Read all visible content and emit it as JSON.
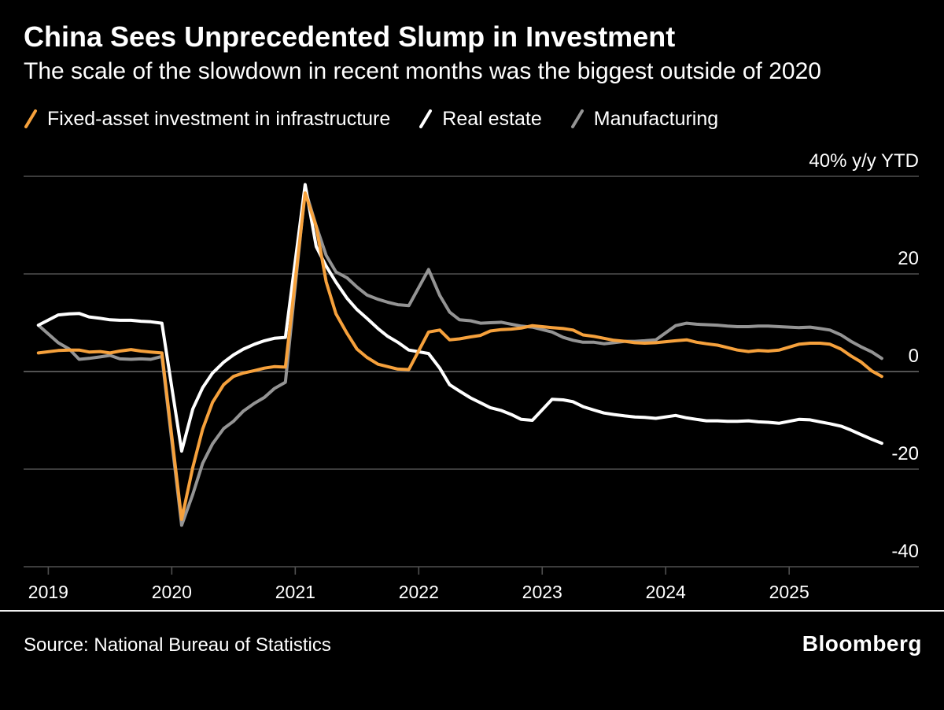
{
  "header": {
    "title": "China Sees Unprecedented Slump in Investment",
    "subtitle": "The scale of the slowdown in recent months was the biggest outside of 2020"
  },
  "footer": {
    "source": "Source: National Bureau of Statistics",
    "brand": "Bloomberg"
  },
  "colors": {
    "background": "#000000",
    "grid": "#505050",
    "zero_line": "#6e6e6e",
    "baseline": "#f0f0f0",
    "axis_text": "#ffffff"
  },
  "chart_data": {
    "type": "line",
    "title": "China Sees Unprecedented Slump in Investment",
    "subtitle": "The scale of the slowdown in recent months was the biggest outside of 2020",
    "unit_label": "40% y/y YTD",
    "ylim": [
      -45,
      45
    ],
    "yticks": [
      40,
      20,
      0,
      -20,
      -40
    ],
    "ytick_labels": [
      "40% y/y YTD",
      "20",
      "0",
      "-20",
      "-40"
    ],
    "xlim": [
      2018.8,
      2026.05
    ],
    "xticks": [
      2019,
      2020,
      2021,
      2022,
      2023,
      2024,
      2025
    ],
    "xtick_labels": [
      "2019",
      "2020",
      "2021",
      "2022",
      "2023",
      "2024",
      "2025"
    ],
    "grid": true,
    "legend_position": "top",
    "x": [
      2018.92,
      2019.08,
      2019.17,
      2019.25,
      2019.33,
      2019.42,
      2019.5,
      2019.58,
      2019.67,
      2019.75,
      2019.83,
      2019.92,
      2020.08,
      2020.17,
      2020.25,
      2020.33,
      2020.42,
      2020.5,
      2020.58,
      2020.67,
      2020.75,
      2020.83,
      2020.92,
      2021.08,
      2021.17,
      2021.25,
      2021.33,
      2021.42,
      2021.5,
      2021.58,
      2021.67,
      2021.75,
      2021.83,
      2021.92,
      2022.08,
      2022.17,
      2022.25,
      2022.33,
      2022.42,
      2022.5,
      2022.58,
      2022.67,
      2022.75,
      2022.83,
      2022.92,
      2023.08,
      2023.17,
      2023.25,
      2023.33,
      2023.42,
      2023.5,
      2023.58,
      2023.67,
      2023.75,
      2023.83,
      2023.92,
      2024.08,
      2024.17,
      2024.25,
      2024.33,
      2024.42,
      2024.5,
      2024.58,
      2024.67,
      2024.75,
      2024.83,
      2024.92,
      2025.08,
      2025.17,
      2025.25,
      2025.33,
      2025.42,
      2025.5,
      2025.58,
      2025.67,
      2025.75
    ],
    "series": [
      {
        "name": "Fixed-asset investment in infrastructure",
        "color": "#F6A13C",
        "values": [
          3.8,
          4.3,
          4.4,
          4.4,
          4.0,
          4.1,
          3.8,
          4.2,
          4.5,
          4.2,
          4.0,
          3.8,
          -30.3,
          -19.7,
          -11.8,
          -6.3,
          -2.7,
          -1.0,
          -0.3,
          0.2,
          0.7,
          1.0,
          0.9,
          36.6,
          29.7,
          18.4,
          11.8,
          7.8,
          4.6,
          2.9,
          1.5,
          1.0,
          0.5,
          0.4,
          8.1,
          8.5,
          6.5,
          6.7,
          7.1,
          7.4,
          8.3,
          8.6,
          8.7,
          8.9,
          9.4,
          9.0,
          8.8,
          8.5,
          7.5,
          7.2,
          6.8,
          6.4,
          6.2,
          5.9,
          5.8,
          5.9,
          6.3,
          6.5,
          6.0,
          5.7,
          5.4,
          4.9,
          4.4,
          4.1,
          4.3,
          4.2,
          4.4,
          5.6,
          5.8,
          5.8,
          5.6,
          4.6,
          3.2,
          2.0,
          0.1,
          -1.0
        ]
      },
      {
        "name": "Real estate",
        "color": "#FFFFFF",
        "values": [
          9.5,
          11.6,
          11.8,
          11.9,
          11.2,
          10.9,
          10.6,
          10.5,
          10.5,
          10.3,
          10.2,
          9.9,
          -16.3,
          -7.7,
          -3.3,
          -0.3,
          1.9,
          3.4,
          4.6,
          5.6,
          6.3,
          6.8,
          7.0,
          38.3,
          25.6,
          21.6,
          18.3,
          15.0,
          12.7,
          10.9,
          8.8,
          7.2,
          6.0,
          4.4,
          3.7,
          0.7,
          -2.7,
          -4.0,
          -5.4,
          -6.4,
          -7.4,
          -8.0,
          -8.8,
          -9.8,
          -10.0,
          -5.7,
          -5.8,
          -6.2,
          -7.2,
          -7.9,
          -8.5,
          -8.8,
          -9.1,
          -9.3,
          -9.4,
          -9.6,
          -9.0,
          -9.5,
          -9.8,
          -10.1,
          -10.1,
          -10.2,
          -10.2,
          -10.1,
          -10.3,
          -10.4,
          -10.6,
          -9.8,
          -9.9,
          -10.3,
          -10.7,
          -11.2,
          -12.0,
          -12.9,
          -13.9,
          -14.7
        ]
      },
      {
        "name": "Manufacturing",
        "color": "#949494",
        "values": [
          9.5,
          5.9,
          4.6,
          2.5,
          2.7,
          3.0,
          3.3,
          2.6,
          2.5,
          2.6,
          2.5,
          3.1,
          -31.5,
          -25.2,
          -18.8,
          -14.8,
          -11.7,
          -10.2,
          -8.1,
          -6.5,
          -5.3,
          -3.5,
          -2.2,
          37.3,
          29.8,
          23.8,
          20.4,
          19.2,
          17.3,
          15.7,
          14.8,
          14.2,
          13.7,
          13.5,
          20.9,
          15.6,
          12.2,
          10.6,
          10.4,
          9.9,
          10.0,
          10.1,
          9.7,
          9.3,
          9.1,
          8.1,
          7.0,
          6.4,
          6.0,
          6.0,
          5.7,
          5.9,
          6.2,
          6.2,
          6.3,
          6.5,
          9.4,
          9.9,
          9.7,
          9.6,
          9.5,
          9.3,
          9.2,
          9.2,
          9.3,
          9.3,
          9.2,
          9.0,
          9.1,
          8.8,
          8.5,
          7.5,
          6.2,
          5.1,
          4.0,
          2.7
        ]
      }
    ],
    "source": "Source: National Bureau of Statistics"
  }
}
